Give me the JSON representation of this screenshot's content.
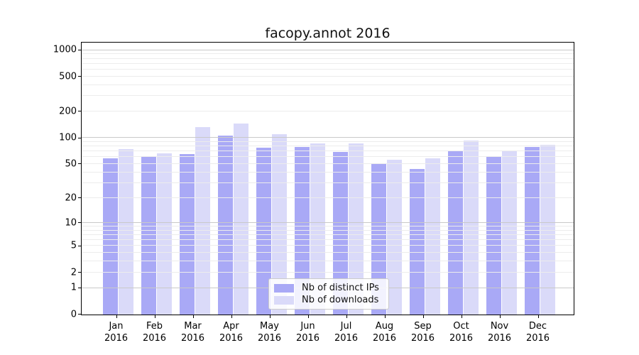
{
  "figure": {
    "background": "#ffffff",
    "spine_color": "#000000",
    "major_grid_color": "#c9c9c9",
    "minor_grid_color": "#ececec"
  },
  "chart_data": {
    "type": "bar",
    "title": "facopy.annot 2016",
    "categories": [
      "Jan",
      "Feb",
      "Mar",
      "Apr",
      "May",
      "Jun",
      "Jul",
      "Aug",
      "Sep",
      "Oct",
      "Nov",
      "Dec"
    ],
    "category_year": "2016",
    "series": [
      {
        "name": "Nb of distinct IPs",
        "color": "#a9a9f6",
        "values": [
          58,
          61,
          65,
          107,
          77,
          78,
          69,
          50,
          44,
          70,
          62,
          78
        ]
      },
      {
        "name": "Nb of downloads",
        "color": "#dadaf9",
        "values": [
          74,
          66,
          134,
          147,
          110,
          87,
          87,
          56,
          58,
          93,
          72,
          84
        ]
      }
    ],
    "xlabel": "",
    "ylabel": "",
    "yscale": "log1p",
    "ylim": [
      0,
      1250
    ],
    "y_tick_values": [
      1000,
      500,
      200,
      100,
      50,
      20,
      10,
      5,
      2,
      1,
      0
    ],
    "y_major_gridlines": [
      1,
      10,
      100,
      1000
    ],
    "y_minor_gridlines": [
      2,
      3,
      4,
      5,
      6,
      7,
      8,
      9,
      20,
      30,
      40,
      50,
      60,
      70,
      80,
      90,
      200,
      300,
      400,
      500,
      600,
      700,
      800,
      900
    ],
    "grid": "on",
    "legend_position": "lower-center"
  }
}
